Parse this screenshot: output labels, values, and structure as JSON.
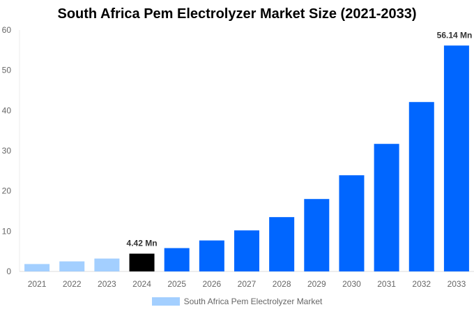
{
  "chart_data": {
    "type": "bar",
    "title": "South Africa Pem Electrolyzer Market Size (2021-2033)",
    "categories": [
      "2021",
      "2022",
      "2023",
      "2024",
      "2025",
      "2026",
      "2027",
      "2028",
      "2029",
      "2030",
      "2031",
      "2032",
      "2033"
    ],
    "series": [
      {
        "name": "South Africa Pem Electrolyzer Market",
        "values": [
          1.84,
          2.5,
          3.2,
          4.42,
          5.8,
          7.7,
          10.2,
          13.5,
          18.0,
          23.9,
          31.7,
          42.1,
          56.14
        ]
      }
    ],
    "bar_colors": [
      "#a3cfff",
      "#a3cfff",
      "#a3cfff",
      "#000000",
      "#0066ff",
      "#0066ff",
      "#0066ff",
      "#0066ff",
      "#0066ff",
      "#0066ff",
      "#0066ff",
      "#0066ff",
      "#0066ff"
    ],
    "data_labels": {
      "3": "4.42 Mn",
      "12": "56.14 Mn"
    },
    "yticks": [
      0,
      10,
      20,
      30,
      40,
      50,
      60
    ],
    "ylim": [
      0,
      60
    ],
    "xlabel": "",
    "ylabel": "",
    "grid": false,
    "legend_position": "bottom",
    "legend_color": "#a3cfff"
  }
}
